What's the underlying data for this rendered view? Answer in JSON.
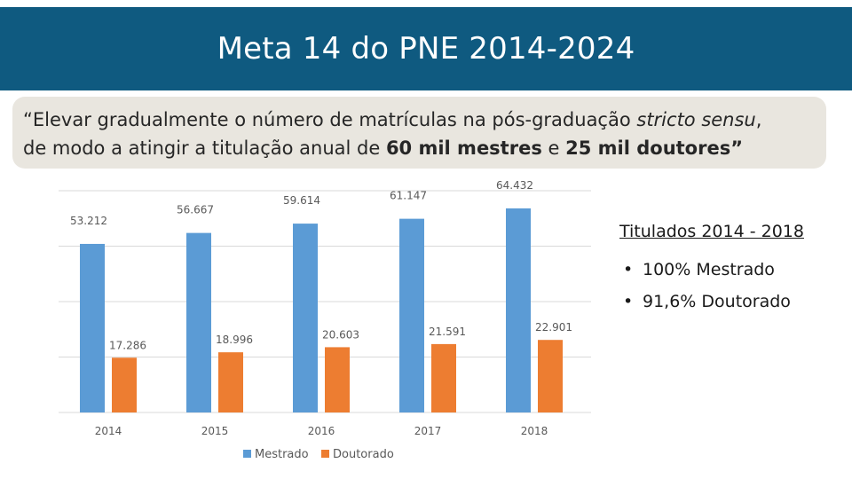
{
  "header": {
    "title": "Meta 14 do PNE 2014-2024"
  },
  "quote": {
    "part1": "“Elevar gradualmente o número de matrículas na pós-graduação ",
    "italic": "stricto sensu",
    "part2": ",",
    "part3": "de modo a atingir a titulação anual de ",
    "bold1": "60 mil mestres",
    "part4": " e ",
    "bold2": "25 mil doutores”"
  },
  "side": {
    "title": "Titulados 2014 - 2018",
    "items": [
      {
        "bullet": "•",
        "text": "100% Mestrado"
      },
      {
        "bullet": "•",
        "text": "91,6% Doutorado"
      }
    ]
  },
  "chart_data": {
    "type": "bar",
    "categories": [
      "2014",
      "2015",
      "2016",
      "2017",
      "2018"
    ],
    "series": [
      {
        "name": "Mestrado",
        "values": [
          53212,
          56667,
          59614,
          61147,
          64432
        ],
        "labels": [
          "53.212",
          "56.667",
          "59.614",
          "61.147",
          "64.432"
        ],
        "color": "#5b9bd5"
      },
      {
        "name": "Doutorado",
        "values": [
          17286,
          18996,
          20603,
          21591,
          22901
        ],
        "labels": [
          "17.286",
          "18.996",
          "20.603",
          "21.591",
          "22.901"
        ],
        "color": "#ed7d31"
      }
    ],
    "ylim": [
      0,
      70000
    ],
    "grid": true,
    "legend": "bottom",
    "title": "",
    "xlabel": "",
    "ylabel": ""
  }
}
